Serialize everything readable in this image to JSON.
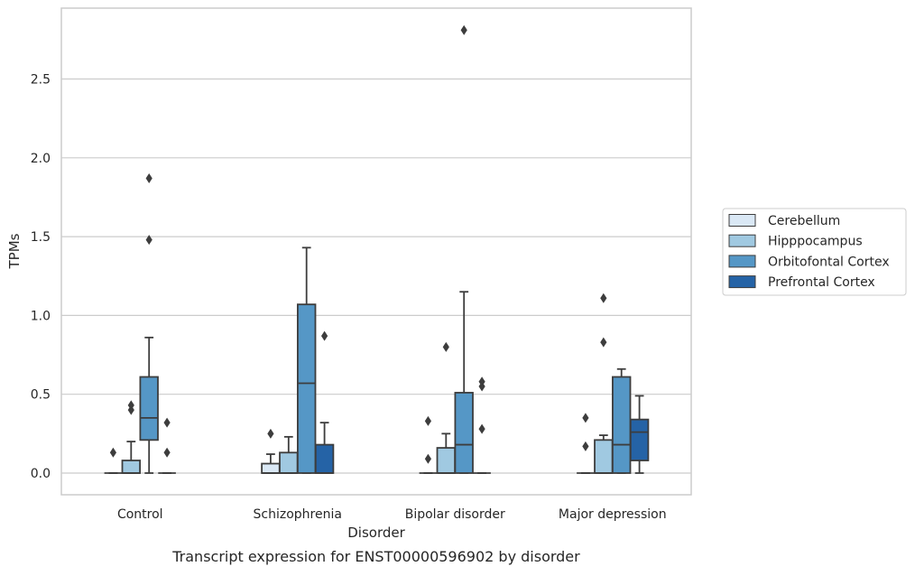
{
  "chart_data": {
    "type": "box",
    "title": "",
    "caption": "Transcript expression for ENST00000596902 by disorder",
    "xlabel": "Disorder",
    "ylabel": "TPMs",
    "ylim": [
      -0.14,
      2.95
    ],
    "yticks": [
      "0.0",
      "0.5",
      "1.0",
      "1.5",
      "2.0",
      "2.5"
    ],
    "grid": "horizontal",
    "legend_position": "right",
    "categories": [
      "Control",
      "Schizophrenia",
      "Bipolar disorder",
      "Major depression"
    ],
    "series": [
      {
        "name": "Cerebellum",
        "color": "#dae8f5",
        "boxes": [
          {
            "q1": 0,
            "median": 0,
            "q3": 0,
            "whisker_low": 0,
            "whisker_high": 0,
            "outliers": [
              0.13
            ]
          },
          {
            "q1": 0,
            "median": 0,
            "q3": 0.06,
            "whisker_low": 0,
            "whisker_high": 0.12,
            "outliers": [
              0.25
            ]
          },
          {
            "q1": 0,
            "median": 0,
            "q3": 0,
            "whisker_low": 0,
            "whisker_high": 0,
            "outliers": [
              0.09,
              0.33
            ]
          },
          {
            "q1": 0,
            "median": 0,
            "q3": 0,
            "whisker_low": 0,
            "whisker_high": 0,
            "outliers": [
              0.17,
              0.35
            ]
          }
        ]
      },
      {
        "name": "Hipppocampus",
        "color": "#a0c9e1",
        "boxes": [
          {
            "q1": 0,
            "median": 0,
            "q3": 0.08,
            "whisker_low": 0,
            "whisker_high": 0.2,
            "outliers": [
              0.4,
              0.43
            ]
          },
          {
            "q1": 0,
            "median": 0,
            "q3": 0.13,
            "whisker_low": 0,
            "whisker_high": 0.23,
            "outliers": []
          },
          {
            "q1": 0,
            "median": 0,
            "q3": 0.16,
            "whisker_low": 0,
            "whisker_high": 0.25,
            "outliers": [
              0.8
            ]
          },
          {
            "q1": 0,
            "median": 0,
            "q3": 0.21,
            "whisker_low": 0,
            "whisker_high": 0.24,
            "outliers": [
              0.83,
              1.11
            ]
          }
        ]
      },
      {
        "name": "Orbitofontal Cortex",
        "color": "#5597c6",
        "boxes": [
          {
            "q1": 0.21,
            "median": 0.35,
            "q3": 0.61,
            "whisker_low": 0,
            "whisker_high": 0.86,
            "outliers": [
              1.48,
              1.87
            ]
          },
          {
            "q1": 0,
            "median": 0.57,
            "q3": 1.07,
            "whisker_low": 0,
            "whisker_high": 1.43,
            "outliers": []
          },
          {
            "q1": 0,
            "median": 0.18,
            "q3": 0.51,
            "whisker_low": 0,
            "whisker_high": 1.15,
            "outliers": [
              2.81
            ]
          },
          {
            "q1": 0,
            "median": 0.18,
            "q3": 0.61,
            "whisker_low": 0,
            "whisker_high": 0.66,
            "outliers": []
          }
        ]
      },
      {
        "name": "Prefrontal Cortex",
        "color": "#2563a6",
        "boxes": [
          {
            "q1": 0,
            "median": 0,
            "q3": 0,
            "whisker_low": 0,
            "whisker_high": 0,
            "outliers": [
              0.13,
              0.32
            ]
          },
          {
            "q1": 0,
            "median": 0,
            "q3": 0.18,
            "whisker_low": 0,
            "whisker_high": 0.32,
            "outliers": [
              0.87
            ]
          },
          {
            "q1": 0,
            "median": 0,
            "q3": 0,
            "whisker_low": 0,
            "whisker_high": 0,
            "outliers": [
              0.28,
              0.55,
              0.58
            ]
          },
          {
            "q1": 0.08,
            "median": 0.26,
            "q3": 0.34,
            "whisker_low": 0,
            "whisker_high": 0.49,
            "outliers": []
          }
        ]
      }
    ]
  }
}
